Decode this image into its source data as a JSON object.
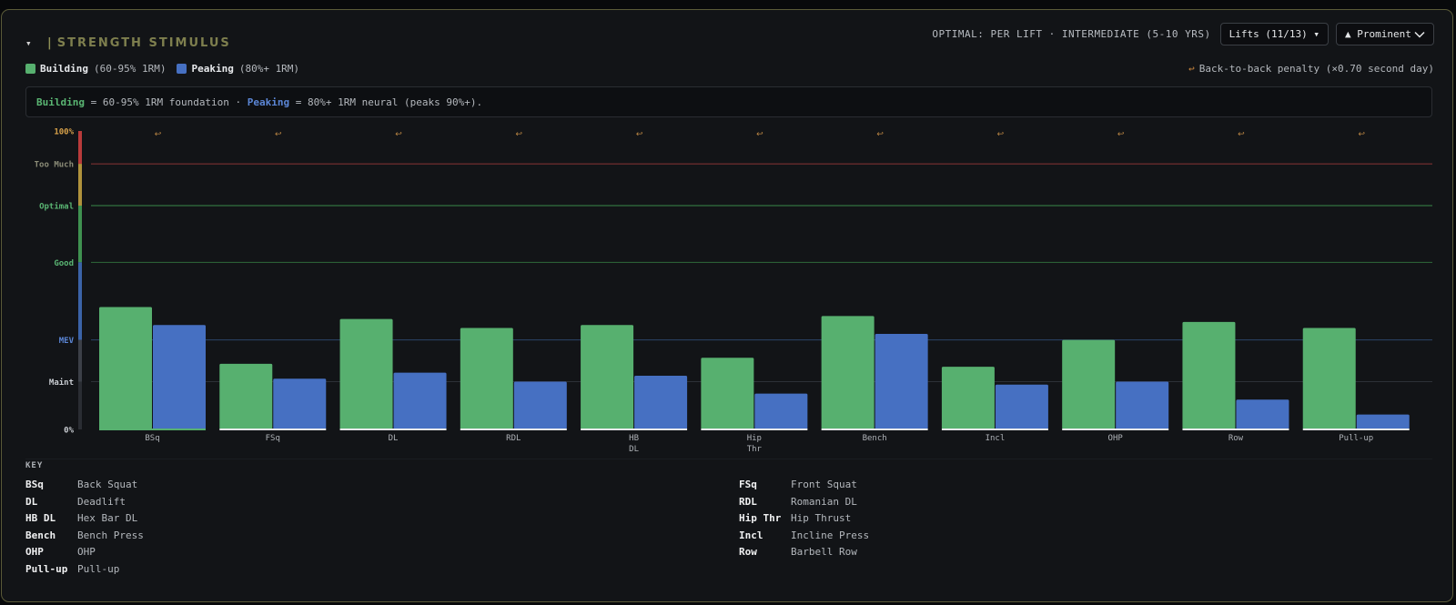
{
  "header": {
    "collapse_glyph": "▾",
    "title": "STRENGTH STIMULUS",
    "optimal_label": "OPTIMAL: PER LIFT · INTERMEDIATE (5-10 YRS)",
    "lifts_button": "Lifts (11/13) ▾",
    "prominent_button": "▲ Prominent"
  },
  "legend": {
    "building_name": "Building",
    "building_desc": "(60-95% 1RM)",
    "peaking_name": "Peaking",
    "peaking_desc": "(80%+ 1RM)",
    "penalty_arrow": "↩",
    "penalty_text": "Back-to-back penalty (×0.70 second day)"
  },
  "info": {
    "building": "Building",
    "building_text": " = 60-95% 1RM foundation · ",
    "peaking": "Peaking",
    "peaking_text": " = 80%+ 1RM neural (peaks 90%+)."
  },
  "colors": {
    "building": "#57b06f",
    "peaking": "#4670c2",
    "too_much_line": "#8a3434",
    "optimal_line": "#3b8a4a",
    "good_line": "#2f6a3b",
    "mev_line": "#2c4468",
    "maint_line": "#2d3138"
  },
  "chart_data": {
    "type": "bar",
    "categories": [
      "BSq",
      "FSq",
      "DL",
      "RDL",
      "HB DL",
      "Hip Thr",
      "Bench",
      "Incl",
      "OHP",
      "Row",
      "Pull-up"
    ],
    "category_lines": [
      [
        "BSq"
      ],
      [
        "FSq"
      ],
      [
        "DL"
      ],
      [
        "RDL"
      ],
      [
        "HB",
        "DL"
      ],
      [
        "Hip",
        "Thr"
      ],
      [
        "Bench"
      ],
      [
        "Incl"
      ],
      [
        "OHP"
      ],
      [
        "Row"
      ],
      [
        "Pull-up"
      ]
    ],
    "series": [
      {
        "name": "Building",
        "values": [
          41,
          22,
          37,
          34,
          35,
          24,
          38,
          21,
          30,
          36,
          34
        ]
      },
      {
        "name": "Peaking",
        "values": [
          35,
          17,
          19,
          16,
          18,
          12,
          32,
          15,
          16,
          10,
          5
        ]
      }
    ],
    "ylim": [
      0,
      100
    ],
    "y_labels": [
      {
        "label": "100%",
        "value": 100
      },
      {
        "label": "Too Much",
        "value": 89
      },
      {
        "label": "Optimal",
        "value": 75
      },
      {
        "label": "Good",
        "value": 56
      },
      {
        "label": "MEV",
        "value": 30
      },
      {
        "label": "Maint",
        "value": 16
      },
      {
        "label": "0%",
        "value": 0
      }
    ],
    "penalty_marker": "↩"
  },
  "key": {
    "title": "KEY",
    "items": [
      {
        "abbr": "BSq",
        "full": "Back Squat"
      },
      {
        "abbr": "FSq",
        "full": "Front Squat"
      },
      {
        "abbr": "DL",
        "full": "Deadlift"
      },
      {
        "abbr": "RDL",
        "full": "Romanian DL"
      },
      {
        "abbr": "HB DL",
        "full": "Hex Bar DL"
      },
      {
        "abbr": "Hip Thr",
        "full": "Hip Thrust"
      },
      {
        "abbr": "Bench",
        "full": "Bench Press"
      },
      {
        "abbr": "Incl",
        "full": "Incline Press"
      },
      {
        "abbr": "OHP",
        "full": "OHP"
      },
      {
        "abbr": "Row",
        "full": "Barbell Row"
      },
      {
        "abbr": "Pull-up",
        "full": "Pull-up"
      }
    ]
  }
}
